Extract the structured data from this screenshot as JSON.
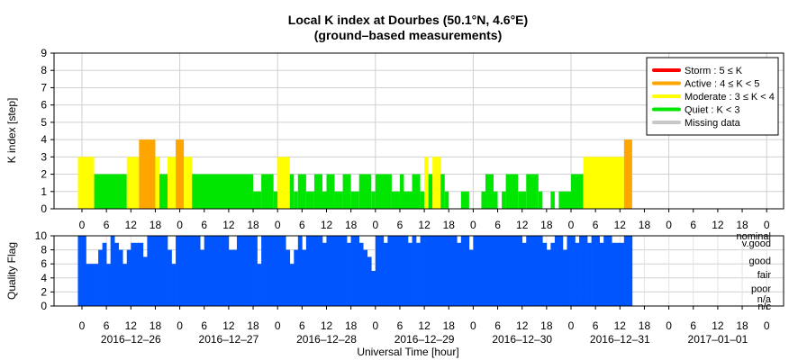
{
  "chart_data": [
    {
      "type": "bar",
      "title": "Local K index at Dourbes (50.1°N, 4.6°E)",
      "subtitle": "(ground–based measurements)",
      "ylabel": "K index [step]",
      "xlabel": "",
      "ylim": [
        0,
        9
      ],
      "yticks": [
        "0",
        "1",
        "2",
        "3",
        "4",
        "5",
        "6",
        "7",
        "8",
        "9"
      ],
      "hour_ticks": [
        "0",
        "6",
        "12",
        "18",
        "0",
        "6",
        "12",
        "18",
        "0",
        "6",
        "12",
        "18",
        "0",
        "6",
        "12",
        "18",
        "0",
        "6",
        "12",
        "18",
        "0",
        "6",
        "12",
        "18",
        "0",
        "6",
        "12",
        "18",
        "0"
      ],
      "grid": true,
      "legend_position": "top-right",
      "legend": [
        {
          "label": "Storm : 5 ≤ K",
          "color": "#ff0000"
        },
        {
          "label": "Active : 4 ≤ K < 5",
          "color": "#ffa500"
        },
        {
          "label": "Moderate : 3 ≤ K < 4",
          "color": "#ffff00"
        },
        {
          "label": "Quiet : K < 3",
          "color": "#00e600"
        },
        {
          "label": "Missing data",
          "color": "#c8c8c8"
        }
      ],
      "x_unit": "hours since 2016-12-26 00:00 UT",
      "bins": [
        {
          "t0": -1,
          "t1": 3,
          "k": 3
        },
        {
          "t0": 3,
          "t1": 11,
          "k": 2
        },
        {
          "t0": 11,
          "t1": 14,
          "k": 3
        },
        {
          "t0": 14,
          "t1": 18,
          "k": 4
        },
        {
          "t0": 18,
          "t1": 19,
          "k": 3
        },
        {
          "t0": 19,
          "t1": 21,
          "k": 2
        },
        {
          "t0": 21,
          "t1": 23,
          "k": 3
        },
        {
          "t0": 23,
          "t1": 25,
          "k": 4
        },
        {
          "t0": 25,
          "t1": 27,
          "k": 3
        },
        {
          "t0": 27,
          "t1": 42,
          "k": 2
        },
        {
          "t0": 42,
          "t1": 44,
          "k": 1
        },
        {
          "t0": 44,
          "t1": 47,
          "k": 2
        },
        {
          "t0": 47,
          "t1": 48,
          "k": 1
        },
        {
          "t0": 48,
          "t1": 51,
          "k": 3
        },
        {
          "t0": 51,
          "t1": 52,
          "k": 2
        },
        {
          "t0": 52,
          "t1": 53,
          "k": 1
        },
        {
          "t0": 53,
          "t1": 55,
          "k": 2
        },
        {
          "t0": 55,
          "t1": 57,
          "k": 1
        },
        {
          "t0": 57,
          "t1": 59,
          "k": 2
        },
        {
          "t0": 59,
          "t1": 60,
          "k": 1
        },
        {
          "t0": 60,
          "t1": 62,
          "k": 2
        },
        {
          "t0": 62,
          "t1": 64,
          "k": 1
        },
        {
          "t0": 64,
          "t1": 66,
          "k": 2
        },
        {
          "t0": 66,
          "t1": 68,
          "k": 1
        },
        {
          "t0": 68,
          "t1": 71,
          "k": 2
        },
        {
          "t0": 71,
          "t1": 72,
          "k": 1
        },
        {
          "t0": 72,
          "t1": 76,
          "k": 2
        },
        {
          "t0": 76,
          "t1": 78,
          "k": 1
        },
        {
          "t0": 78,
          "t1": 79,
          "k": 2
        },
        {
          "t0": 79,
          "t1": 81,
          "k": 1
        },
        {
          "t0": 81,
          "t1": 83,
          "k": 2
        },
        {
          "t0": 83,
          "t1": 84,
          "k": 1
        },
        {
          "t0": 84,
          "t1": 85,
          "k": 3
        },
        {
          "t0": 85,
          "t1": 86,
          "k": 2
        },
        {
          "t0": 86,
          "t1": 88,
          "k": 3
        },
        {
          "t0": 88,
          "t1": 89,
          "k": 2
        },
        {
          "t0": 89,
          "t1": 90,
          "k": 1
        },
        {
          "t0": 91,
          "t1": 93,
          "k": 0
        },
        {
          "t0": 93,
          "t1": 95,
          "k": 1
        },
        {
          "t0": 98,
          "t1": 99,
          "k": 1
        },
        {
          "t0": 99,
          "t1": 101,
          "k": 2
        },
        {
          "t0": 101,
          "t1": 102,
          "k": 1
        },
        {
          "t0": 103,
          "t1": 104,
          "k": 1
        },
        {
          "t0": 104,
          "t1": 107,
          "k": 2
        },
        {
          "t0": 107,
          "t1": 109,
          "k": 1
        },
        {
          "t0": 109,
          "t1": 112,
          "k": 2
        },
        {
          "t0": 112,
          "t1": 113,
          "k": 1
        },
        {
          "t0": 114,
          "t1": 115,
          "k": 0
        },
        {
          "t0": 115,
          "t1": 116,
          "k": 1
        },
        {
          "t0": 117,
          "t1": 120,
          "k": 1
        },
        {
          "t0": 120,
          "t1": 123,
          "k": 2
        },
        {
          "t0": 123,
          "t1": 133,
          "k": 3
        },
        {
          "t0": 133,
          "t1": 135,
          "k": 4
        }
      ]
    },
    {
      "type": "bar",
      "title": "",
      "xlabel": "Universal Time [hour]",
      "ylabel": "Quality Flag",
      "ylim": [
        0,
        10
      ],
      "yticks": [
        "0",
        "2",
        "4",
        "6",
        "8",
        "10"
      ],
      "levels": [
        {
          "label": "nominal",
          "value": 10
        },
        {
          "label": "v.good",
          "value": 9
        },
        {
          "label": "good",
          "value": 6.5
        },
        {
          "label": "fair",
          "value": 4.5
        },
        {
          "label": "poor",
          "value": 2.5
        },
        {
          "label": "n/a",
          "value": 1
        },
        {
          "label": "n/c",
          "value": 0
        }
      ],
      "hour_ticks": [
        "0",
        "6",
        "12",
        "18",
        "0",
        "6",
        "12",
        "18",
        "0",
        "6",
        "12",
        "18",
        "0",
        "6",
        "12",
        "18",
        "0",
        "6",
        "12",
        "18",
        "0",
        "6",
        "12",
        "18",
        "0",
        "6",
        "12",
        "18",
        "0"
      ],
      "date_labels": [
        "2016–12–26",
        "2016–12–27",
        "2016–12–28",
        "2016–12–29",
        "2016–12–30",
        "2016–12–31",
        "2017–01–01"
      ],
      "series_color": "#0055ff",
      "x_unit": "hours since 2016-12-26 00:00 UT",
      "bins": [
        {
          "t0": -1,
          "t1": 1,
          "q": 10
        },
        {
          "t0": 1,
          "t1": 4,
          "q": 6
        },
        {
          "t0": 4,
          "t1": 5,
          "q": 8
        },
        {
          "t0": 5,
          "t1": 6,
          "q": 9
        },
        {
          "t0": 6,
          "t1": 7,
          "q": 6
        },
        {
          "t0": 7,
          "t1": 8,
          "q": 10
        },
        {
          "t0": 8,
          "t1": 9,
          "q": 9
        },
        {
          "t0": 9,
          "t1": 10,
          "q": 8
        },
        {
          "t0": 10,
          "t1": 11,
          "q": 6
        },
        {
          "t0": 11,
          "t1": 12,
          "q": 8
        },
        {
          "t0": 12,
          "t1": 15,
          "q": 9
        },
        {
          "t0": 15,
          "t1": 16,
          "q": 7
        },
        {
          "t0": 16,
          "t1": 21,
          "q": 10
        },
        {
          "t0": 21,
          "t1": 22,
          "q": 8
        },
        {
          "t0": 22,
          "t1": 23,
          "q": 6
        },
        {
          "t0": 23,
          "t1": 29,
          "q": 10
        },
        {
          "t0": 29,
          "t1": 30,
          "q": 8
        },
        {
          "t0": 30,
          "t1": 36,
          "q": 10
        },
        {
          "t0": 36,
          "t1": 38,
          "q": 8
        },
        {
          "t0": 38,
          "t1": 43,
          "q": 10
        },
        {
          "t0": 43,
          "t1": 44,
          "q": 6
        },
        {
          "t0": 44,
          "t1": 50,
          "q": 10
        },
        {
          "t0": 50,
          "t1": 51,
          "q": 8
        },
        {
          "t0": 51,
          "t1": 52,
          "q": 6
        },
        {
          "t0": 52,
          "t1": 53,
          "q": 8
        },
        {
          "t0": 53,
          "t1": 54,
          "q": 10
        },
        {
          "t0": 54,
          "t1": 55,
          "q": 8
        },
        {
          "t0": 55,
          "t1": 59,
          "q": 10
        },
        {
          "t0": 59,
          "t1": 60,
          "q": 9
        },
        {
          "t0": 60,
          "t1": 65,
          "q": 10
        },
        {
          "t0": 65,
          "t1": 66,
          "q": 9
        },
        {
          "t0": 66,
          "t1": 68,
          "q": 10
        },
        {
          "t0": 68,
          "t1": 69,
          "q": 9
        },
        {
          "t0": 69,
          "t1": 70,
          "q": 8
        },
        {
          "t0": 70,
          "t1": 71,
          "q": 7
        },
        {
          "t0": 71,
          "t1": 72,
          "q": 5
        },
        {
          "t0": 72,
          "t1": 74,
          "q": 10
        },
        {
          "t0": 74,
          "t1": 75,
          "q": 9
        },
        {
          "t0": 75,
          "t1": 80,
          "q": 10
        },
        {
          "t0": 80,
          "t1": 81,
          "q": 9
        },
        {
          "t0": 81,
          "t1": 82,
          "q": 10
        },
        {
          "t0": 82,
          "t1": 83,
          "q": 9
        },
        {
          "t0": 83,
          "t1": 92,
          "q": 10
        },
        {
          "t0": 92,
          "t1": 93,
          "q": 9
        },
        {
          "t0": 93,
          "t1": 95,
          "q": 10
        },
        {
          "t0": 95,
          "t1": 96,
          "q": 8
        },
        {
          "t0": 96,
          "t1": 108,
          "q": 10
        },
        {
          "t0": 108,
          "t1": 109,
          "q": 9
        },
        {
          "t0": 109,
          "t1": 113,
          "q": 10
        },
        {
          "t0": 113,
          "t1": 114,
          "q": 9
        },
        {
          "t0": 114,
          "t1": 115,
          "q": 8
        },
        {
          "t0": 115,
          "t1": 116,
          "q": 9
        },
        {
          "t0": 116,
          "t1": 118,
          "q": 10
        },
        {
          "t0": 118,
          "t1": 119,
          "q": 8
        },
        {
          "t0": 119,
          "t1": 121,
          "q": 10
        },
        {
          "t0": 121,
          "t1": 122,
          "q": 9
        },
        {
          "t0": 122,
          "t1": 124,
          "q": 10
        },
        {
          "t0": 124,
          "t1": 125,
          "q": 9
        },
        {
          "t0": 125,
          "t1": 127,
          "q": 10
        },
        {
          "t0": 127,
          "t1": 128,
          "q": 9
        },
        {
          "t0": 128,
          "t1": 130,
          "q": 10
        },
        {
          "t0": 130,
          "t1": 133,
          "q": 9
        },
        {
          "t0": 133,
          "t1": 135,
          "q": 10
        }
      ]
    }
  ]
}
